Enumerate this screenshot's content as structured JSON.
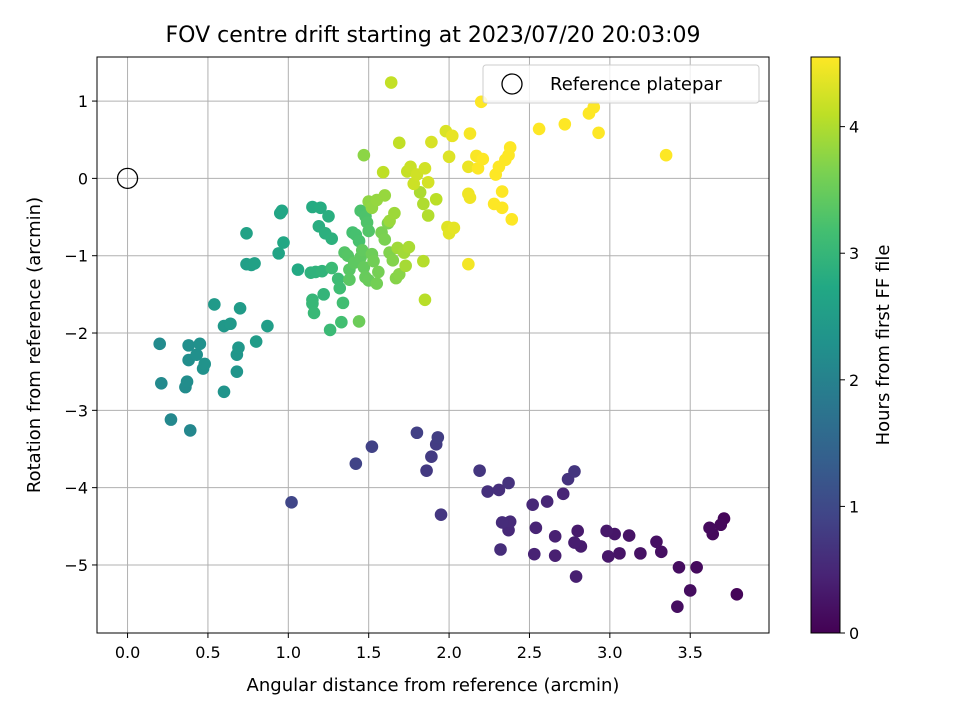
{
  "chart_data": {
    "type": "scatter",
    "title": "FOV centre drift starting at 2023/07/20 20:03:09",
    "xlabel": "Angular distance from reference (arcmin)",
    "ylabel": "Rotation from reference (arcmin)",
    "colorbar_label": "Hours from first FF file",
    "xlim": [
      -0.19,
      3.99
    ],
    "ylim": [
      -5.88,
      1.57
    ],
    "xticks": [
      0.0,
      0.5,
      1.0,
      1.5,
      2.0,
      2.5,
      3.0,
      3.5
    ],
    "xtick_labels": [
      "0.0",
      "0.5",
      "1.0",
      "1.5",
      "2.0",
      "2.5",
      "3.0",
      "3.5"
    ],
    "yticks": [
      -5,
      -4,
      -3,
      -2,
      -1,
      0,
      1
    ],
    "ytick_labels": [
      "−5",
      "−4",
      "−3",
      "−2",
      "−1",
      "0",
      "1"
    ],
    "colorbar_range": [
      0,
      4.55
    ],
    "colorbar_ticks": [
      0,
      1,
      2,
      3,
      4
    ],
    "colorbar_tick_labels": [
      "0",
      "1",
      "2",
      "3",
      "4"
    ],
    "grid": true,
    "legend": {
      "position": "top-right",
      "label": "Reference platepar"
    },
    "reference_point": {
      "x": 0.0,
      "y": 0.0
    },
    "colormap": [
      "#440154",
      "#482475",
      "#414487",
      "#355f8d",
      "#2a788e",
      "#21918c",
      "#22a884",
      "#44bf70",
      "#7ad151",
      "#bddf26",
      "#fde725"
    ],
    "points": [
      {
        "x": 3.79,
        "y": -5.38,
        "t": 0.05
      },
      {
        "x": 3.71,
        "y": -4.4,
        "t": 0.07
      },
      {
        "x": 3.69,
        "y": -4.48,
        "t": 0.09
      },
      {
        "x": 3.64,
        "y": -4.6,
        "t": 0.1
      },
      {
        "x": 3.62,
        "y": -4.52,
        "t": 0.12
      },
      {
        "x": 3.54,
        "y": -5.03,
        "t": 0.13
      },
      {
        "x": 3.5,
        "y": -5.33,
        "t": 0.15
      },
      {
        "x": 3.43,
        "y": -5.03,
        "t": 0.16
      },
      {
        "x": 3.42,
        "y": -5.54,
        "t": 0.17
      },
      {
        "x": 3.32,
        "y": -4.83,
        "t": 0.19
      },
      {
        "x": 3.29,
        "y": -4.7,
        "t": 0.2
      },
      {
        "x": 3.19,
        "y": -4.85,
        "t": 0.22
      },
      {
        "x": 3.12,
        "y": -4.62,
        "t": 0.24
      },
      {
        "x": 3.06,
        "y": -4.85,
        "t": 0.25
      },
      {
        "x": 3.03,
        "y": -4.6,
        "t": 0.27
      },
      {
        "x": 2.99,
        "y": -4.89,
        "t": 0.29
      },
      {
        "x": 2.98,
        "y": -4.56,
        "t": 0.31
      },
      {
        "x": 2.8,
        "y": -4.56,
        "t": 0.33
      },
      {
        "x": 2.82,
        "y": -4.76,
        "t": 0.35
      },
      {
        "x": 2.78,
        "y": -4.71,
        "t": 0.37
      },
      {
        "x": 2.79,
        "y": -5.15,
        "t": 0.38
      },
      {
        "x": 2.66,
        "y": -4.88,
        "t": 0.4
      },
      {
        "x": 2.66,
        "y": -4.63,
        "t": 0.42
      },
      {
        "x": 2.53,
        "y": -4.86,
        "t": 0.44
      },
      {
        "x": 2.54,
        "y": -4.52,
        "t": 0.46
      },
      {
        "x": 2.71,
        "y": -4.08,
        "t": 0.47
      },
      {
        "x": 2.61,
        "y": -4.18,
        "t": 0.49
      },
      {
        "x": 2.52,
        "y": -4.22,
        "t": 0.51
      },
      {
        "x": 2.37,
        "y": -4.55,
        "t": 0.53
      },
      {
        "x": 2.38,
        "y": -4.44,
        "t": 0.55
      },
      {
        "x": 2.33,
        "y": -4.45,
        "t": 0.57
      },
      {
        "x": 2.32,
        "y": -4.8,
        "t": 0.59
      },
      {
        "x": 2.31,
        "y": -4.03,
        "t": 0.61
      },
      {
        "x": 2.24,
        "y": -4.05,
        "t": 0.63
      },
      {
        "x": 2.37,
        "y": -3.94,
        "t": 0.65
      },
      {
        "x": 2.74,
        "y": -3.89,
        "t": 0.67
      },
      {
        "x": 2.78,
        "y": -3.79,
        "t": 0.69
      },
      {
        "x": 2.19,
        "y": -3.78,
        "t": 0.71
      },
      {
        "x": 1.95,
        "y": -4.35,
        "t": 0.73
      },
      {
        "x": 1.86,
        "y": -3.78,
        "t": 0.75
      },
      {
        "x": 1.89,
        "y": -3.6,
        "t": 0.78
      },
      {
        "x": 1.92,
        "y": -3.44,
        "t": 0.8
      },
      {
        "x": 1.93,
        "y": -3.35,
        "t": 0.82
      },
      {
        "x": 1.8,
        "y": -3.29,
        "t": 0.85
      },
      {
        "x": 1.52,
        "y": -3.47,
        "t": 0.88
      },
      {
        "x": 1.42,
        "y": -3.69,
        "t": 0.91
      },
      {
        "x": 1.02,
        "y": -4.19,
        "t": 0.95
      },
      {
        "x": 0.39,
        "y": -3.26,
        "t": 2.1
      },
      {
        "x": 0.27,
        "y": -3.12,
        "t": 2.12
      },
      {
        "x": 0.21,
        "y": -2.65,
        "t": 2.14
      },
      {
        "x": 0.2,
        "y": -2.14,
        "t": 2.16
      },
      {
        "x": 0.36,
        "y": -2.7,
        "t": 2.18
      },
      {
        "x": 0.37,
        "y": -2.63,
        "t": 2.2
      },
      {
        "x": 0.38,
        "y": -2.35,
        "t": 2.22
      },
      {
        "x": 0.38,
        "y": -2.16,
        "t": 2.24
      },
      {
        "x": 0.43,
        "y": -2.28,
        "t": 2.26
      },
      {
        "x": 0.45,
        "y": -2.14,
        "t": 2.28
      },
      {
        "x": 0.47,
        "y": -2.46,
        "t": 2.3
      },
      {
        "x": 0.48,
        "y": -2.4,
        "t": 2.32
      },
      {
        "x": 0.6,
        "y": -2.76,
        "t": 2.34
      },
      {
        "x": 0.68,
        "y": -2.5,
        "t": 2.36
      },
      {
        "x": 0.68,
        "y": -2.28,
        "t": 2.38
      },
      {
        "x": 0.69,
        "y": -2.19,
        "t": 2.4
      },
      {
        "x": 0.6,
        "y": -1.91,
        "t": 2.42
      },
      {
        "x": 0.64,
        "y": -1.88,
        "t": 2.44
      },
      {
        "x": 0.54,
        "y": -1.63,
        "t": 2.46
      },
      {
        "x": 0.7,
        "y": -1.68,
        "t": 2.48
      },
      {
        "x": 0.8,
        "y": -2.11,
        "t": 2.5
      },
      {
        "x": 0.87,
        "y": -1.91,
        "t": 2.53
      },
      {
        "x": 0.74,
        "y": -1.11,
        "t": 2.56
      },
      {
        "x": 0.77,
        "y": -1.12,
        "t": 2.58
      },
      {
        "x": 0.79,
        "y": -1.1,
        "t": 2.6
      },
      {
        "x": 0.74,
        "y": -0.71,
        "t": 2.62
      },
      {
        "x": 0.94,
        "y": -0.97,
        "t": 2.65
      },
      {
        "x": 0.95,
        "y": -0.45,
        "t": 2.68
      },
      {
        "x": 0.96,
        "y": -0.42,
        "t": 2.7
      },
      {
        "x": 0.97,
        "y": -0.83,
        "t": 2.72
      },
      {
        "x": 1.06,
        "y": -1.18,
        "t": 2.75
      },
      {
        "x": 1.15,
        "y": -0.37,
        "t": 2.78
      },
      {
        "x": 1.2,
        "y": -0.38,
        "t": 2.8
      },
      {
        "x": 1.19,
        "y": -0.62,
        "t": 2.82
      },
      {
        "x": 1.25,
        "y": -0.49,
        "t": 2.84
      },
      {
        "x": 1.23,
        "y": -0.71,
        "t": 2.86
      },
      {
        "x": 1.27,
        "y": -0.78,
        "t": 2.88
      },
      {
        "x": 1.14,
        "y": -1.22,
        "t": 2.9
      },
      {
        "x": 1.17,
        "y": -1.21,
        "t": 2.92
      },
      {
        "x": 1.21,
        "y": -1.2,
        "t": 2.95
      },
      {
        "x": 1.22,
        "y": -1.5,
        "t": 2.97
      },
      {
        "x": 1.15,
        "y": -1.57,
        "t": 3.0
      },
      {
        "x": 1.15,
        "y": -1.62,
        "t": 3.02
      },
      {
        "x": 1.16,
        "y": -1.74,
        "t": 3.04
      },
      {
        "x": 1.26,
        "y": -1.96,
        "t": 3.06
      },
      {
        "x": 1.27,
        "y": -1.16,
        "t": 3.08
      },
      {
        "x": 1.31,
        "y": -1.3,
        "t": 3.1
      },
      {
        "x": 1.32,
        "y": -1.42,
        "t": 3.12
      },
      {
        "x": 1.34,
        "y": -1.61,
        "t": 3.14
      },
      {
        "x": 1.33,
        "y": -1.86,
        "t": 3.16
      },
      {
        "x": 1.4,
        "y": -0.7,
        "t": 3.18
      },
      {
        "x": 1.42,
        "y": -0.73,
        "t": 3.2
      },
      {
        "x": 1.44,
        "y": -0.81,
        "t": 3.22
      },
      {
        "x": 1.45,
        "y": -0.42,
        "t": 3.24
      },
      {
        "x": 1.48,
        "y": -0.49,
        "t": 3.26
      },
      {
        "x": 1.49,
        "y": -0.57,
        "t": 3.28
      },
      {
        "x": 1.5,
        "y": -0.68,
        "t": 3.3
      },
      {
        "x": 1.35,
        "y": -0.96,
        "t": 3.32
      },
      {
        "x": 1.37,
        "y": -1.0,
        "t": 3.34
      },
      {
        "x": 1.38,
        "y": -1.18,
        "t": 3.36
      },
      {
        "x": 1.38,
        "y": -1.31,
        "t": 3.38
      },
      {
        "x": 1.41,
        "y": -1.09,
        "t": 3.4
      },
      {
        "x": 1.45,
        "y": -1.02,
        "t": 3.42
      },
      {
        "x": 1.46,
        "y": -0.93,
        "t": 3.44
      },
      {
        "x": 1.47,
        "y": -1.15,
        "t": 3.46
      },
      {
        "x": 1.48,
        "y": -1.28,
        "t": 3.48
      },
      {
        "x": 1.5,
        "y": -1.32,
        "t": 3.5
      },
      {
        "x": 1.44,
        "y": -1.85,
        "t": 3.52
      },
      {
        "x": 1.52,
        "y": -0.98,
        "t": 3.54
      },
      {
        "x": 1.53,
        "y": -1.07,
        "t": 3.56
      },
      {
        "x": 1.55,
        "y": -1.36,
        "t": 3.58
      },
      {
        "x": 1.56,
        "y": -1.21,
        "t": 3.6
      },
      {
        "x": 1.58,
        "y": -0.7,
        "t": 3.62
      },
      {
        "x": 1.6,
        "y": -0.79,
        "t": 3.64
      },
      {
        "x": 1.62,
        "y": -0.58,
        "t": 3.66
      },
      {
        "x": 1.63,
        "y": -0.96,
        "t": 3.68
      },
      {
        "x": 1.65,
        "y": -1.06,
        "t": 3.7
      },
      {
        "x": 1.67,
        "y": -1.29,
        "t": 3.72
      },
      {
        "x": 1.69,
        "y": -1.24,
        "t": 3.74
      },
      {
        "x": 1.47,
        "y": 0.3,
        "t": 3.76
      },
      {
        "x": 1.5,
        "y": -0.3,
        "t": 3.78
      },
      {
        "x": 1.52,
        "y": -0.38,
        "t": 3.8
      },
      {
        "x": 1.55,
        "y": -0.28,
        "t": 3.82
      },
      {
        "x": 1.6,
        "y": -0.22,
        "t": 3.84
      },
      {
        "x": 1.63,
        "y": -0.55,
        "t": 3.86
      },
      {
        "x": 1.66,
        "y": -0.45,
        "t": 3.88
      },
      {
        "x": 1.68,
        "y": -0.9,
        "t": 3.9
      },
      {
        "x": 1.72,
        "y": -0.96,
        "t": 3.92
      },
      {
        "x": 1.73,
        "y": -1.13,
        "t": 3.94
      },
      {
        "x": 1.75,
        "y": -0.89,
        "t": 3.96
      },
      {
        "x": 1.82,
        "y": -0.18,
        "t": 3.98
      },
      {
        "x": 1.84,
        "y": -0.33,
        "t": 4.0
      },
      {
        "x": 1.87,
        "y": -0.48,
        "t": 4.02
      },
      {
        "x": 1.84,
        "y": -1.07,
        "t": 4.04
      },
      {
        "x": 1.85,
        "y": -1.57,
        "t": 4.06
      },
      {
        "x": 1.92,
        "y": -0.27,
        "t": 4.08
      },
      {
        "x": 1.59,
        "y": 0.08,
        "t": 4.1
      },
      {
        "x": 1.69,
        "y": 0.46,
        "t": 4.12
      },
      {
        "x": 1.64,
        "y": 1.24,
        "t": 4.14
      },
      {
        "x": 1.74,
        "y": 0.09,
        "t": 4.16
      },
      {
        "x": 1.76,
        "y": 0.15,
        "t": 4.18
      },
      {
        "x": 1.78,
        "y": -0.07,
        "t": 4.2
      },
      {
        "x": 1.8,
        "y": 0.05,
        "t": 4.22
      },
      {
        "x": 1.85,
        "y": 0.13,
        "t": 4.24
      },
      {
        "x": 1.87,
        "y": -0.05,
        "t": 4.26
      },
      {
        "x": 1.89,
        "y": 0.47,
        "t": 4.28
      },
      {
        "x": 1.98,
        "y": 0.61,
        "t": 4.3
      },
      {
        "x": 2.0,
        "y": 0.28,
        "t": 4.32
      },
      {
        "x": 1.99,
        "y": -0.63,
        "t": 4.34
      },
      {
        "x": 2.0,
        "y": -0.71,
        "t": 4.36
      },
      {
        "x": 2.03,
        "y": -0.64,
        "t": 4.38
      },
      {
        "x": 2.02,
        "y": 0.55,
        "t": 4.4
      },
      {
        "x": 2.12,
        "y": 0.15,
        "t": 4.42
      },
      {
        "x": 2.12,
        "y": -0.2,
        "t": 4.44
      },
      {
        "x": 2.13,
        "y": -0.25,
        "t": 4.46
      },
      {
        "x": 2.12,
        "y": -1.11,
        "t": 4.48
      },
      {
        "x": 2.13,
        "y": 0.58,
        "t": 4.5
      },
      {
        "x": 2.17,
        "y": 0.29,
        "t": 4.52
      },
      {
        "x": 2.18,
        "y": 0.13,
        "t": 4.54
      },
      {
        "x": 2.21,
        "y": 0.25,
        "t": 4.56
      },
      {
        "x": 2.2,
        "y": 0.99,
        "t": 4.58
      },
      {
        "x": 2.28,
        "y": -0.33,
        "t": 4.6
      },
      {
        "x": 2.29,
        "y": 0.05,
        "t": 4.62
      },
      {
        "x": 2.31,
        "y": 0.15,
        "t": 4.64
      },
      {
        "x": 2.33,
        "y": -0.38,
        "t": 4.66
      },
      {
        "x": 2.33,
        "y": -0.17,
        "t": 4.68
      },
      {
        "x": 2.35,
        "y": 0.24,
        "t": 4.7
      },
      {
        "x": 2.37,
        "y": 0.3,
        "t": 4.72
      },
      {
        "x": 2.38,
        "y": 0.4,
        "t": 4.74
      },
      {
        "x": 2.39,
        "y": -0.53,
        "t": 4.76
      },
      {
        "x": 2.56,
        "y": 0.64,
        "t": 4.78
      },
      {
        "x": 2.72,
        "y": 0.7,
        "t": 4.8
      },
      {
        "x": 2.87,
        "y": 0.84,
        "t": 4.82
      },
      {
        "x": 2.9,
        "y": 0.92,
        "t": 4.84
      },
      {
        "x": 2.93,
        "y": 0.59,
        "t": 4.86
      },
      {
        "x": 3.35,
        "y": 0.3,
        "t": 4.88
      }
    ]
  }
}
